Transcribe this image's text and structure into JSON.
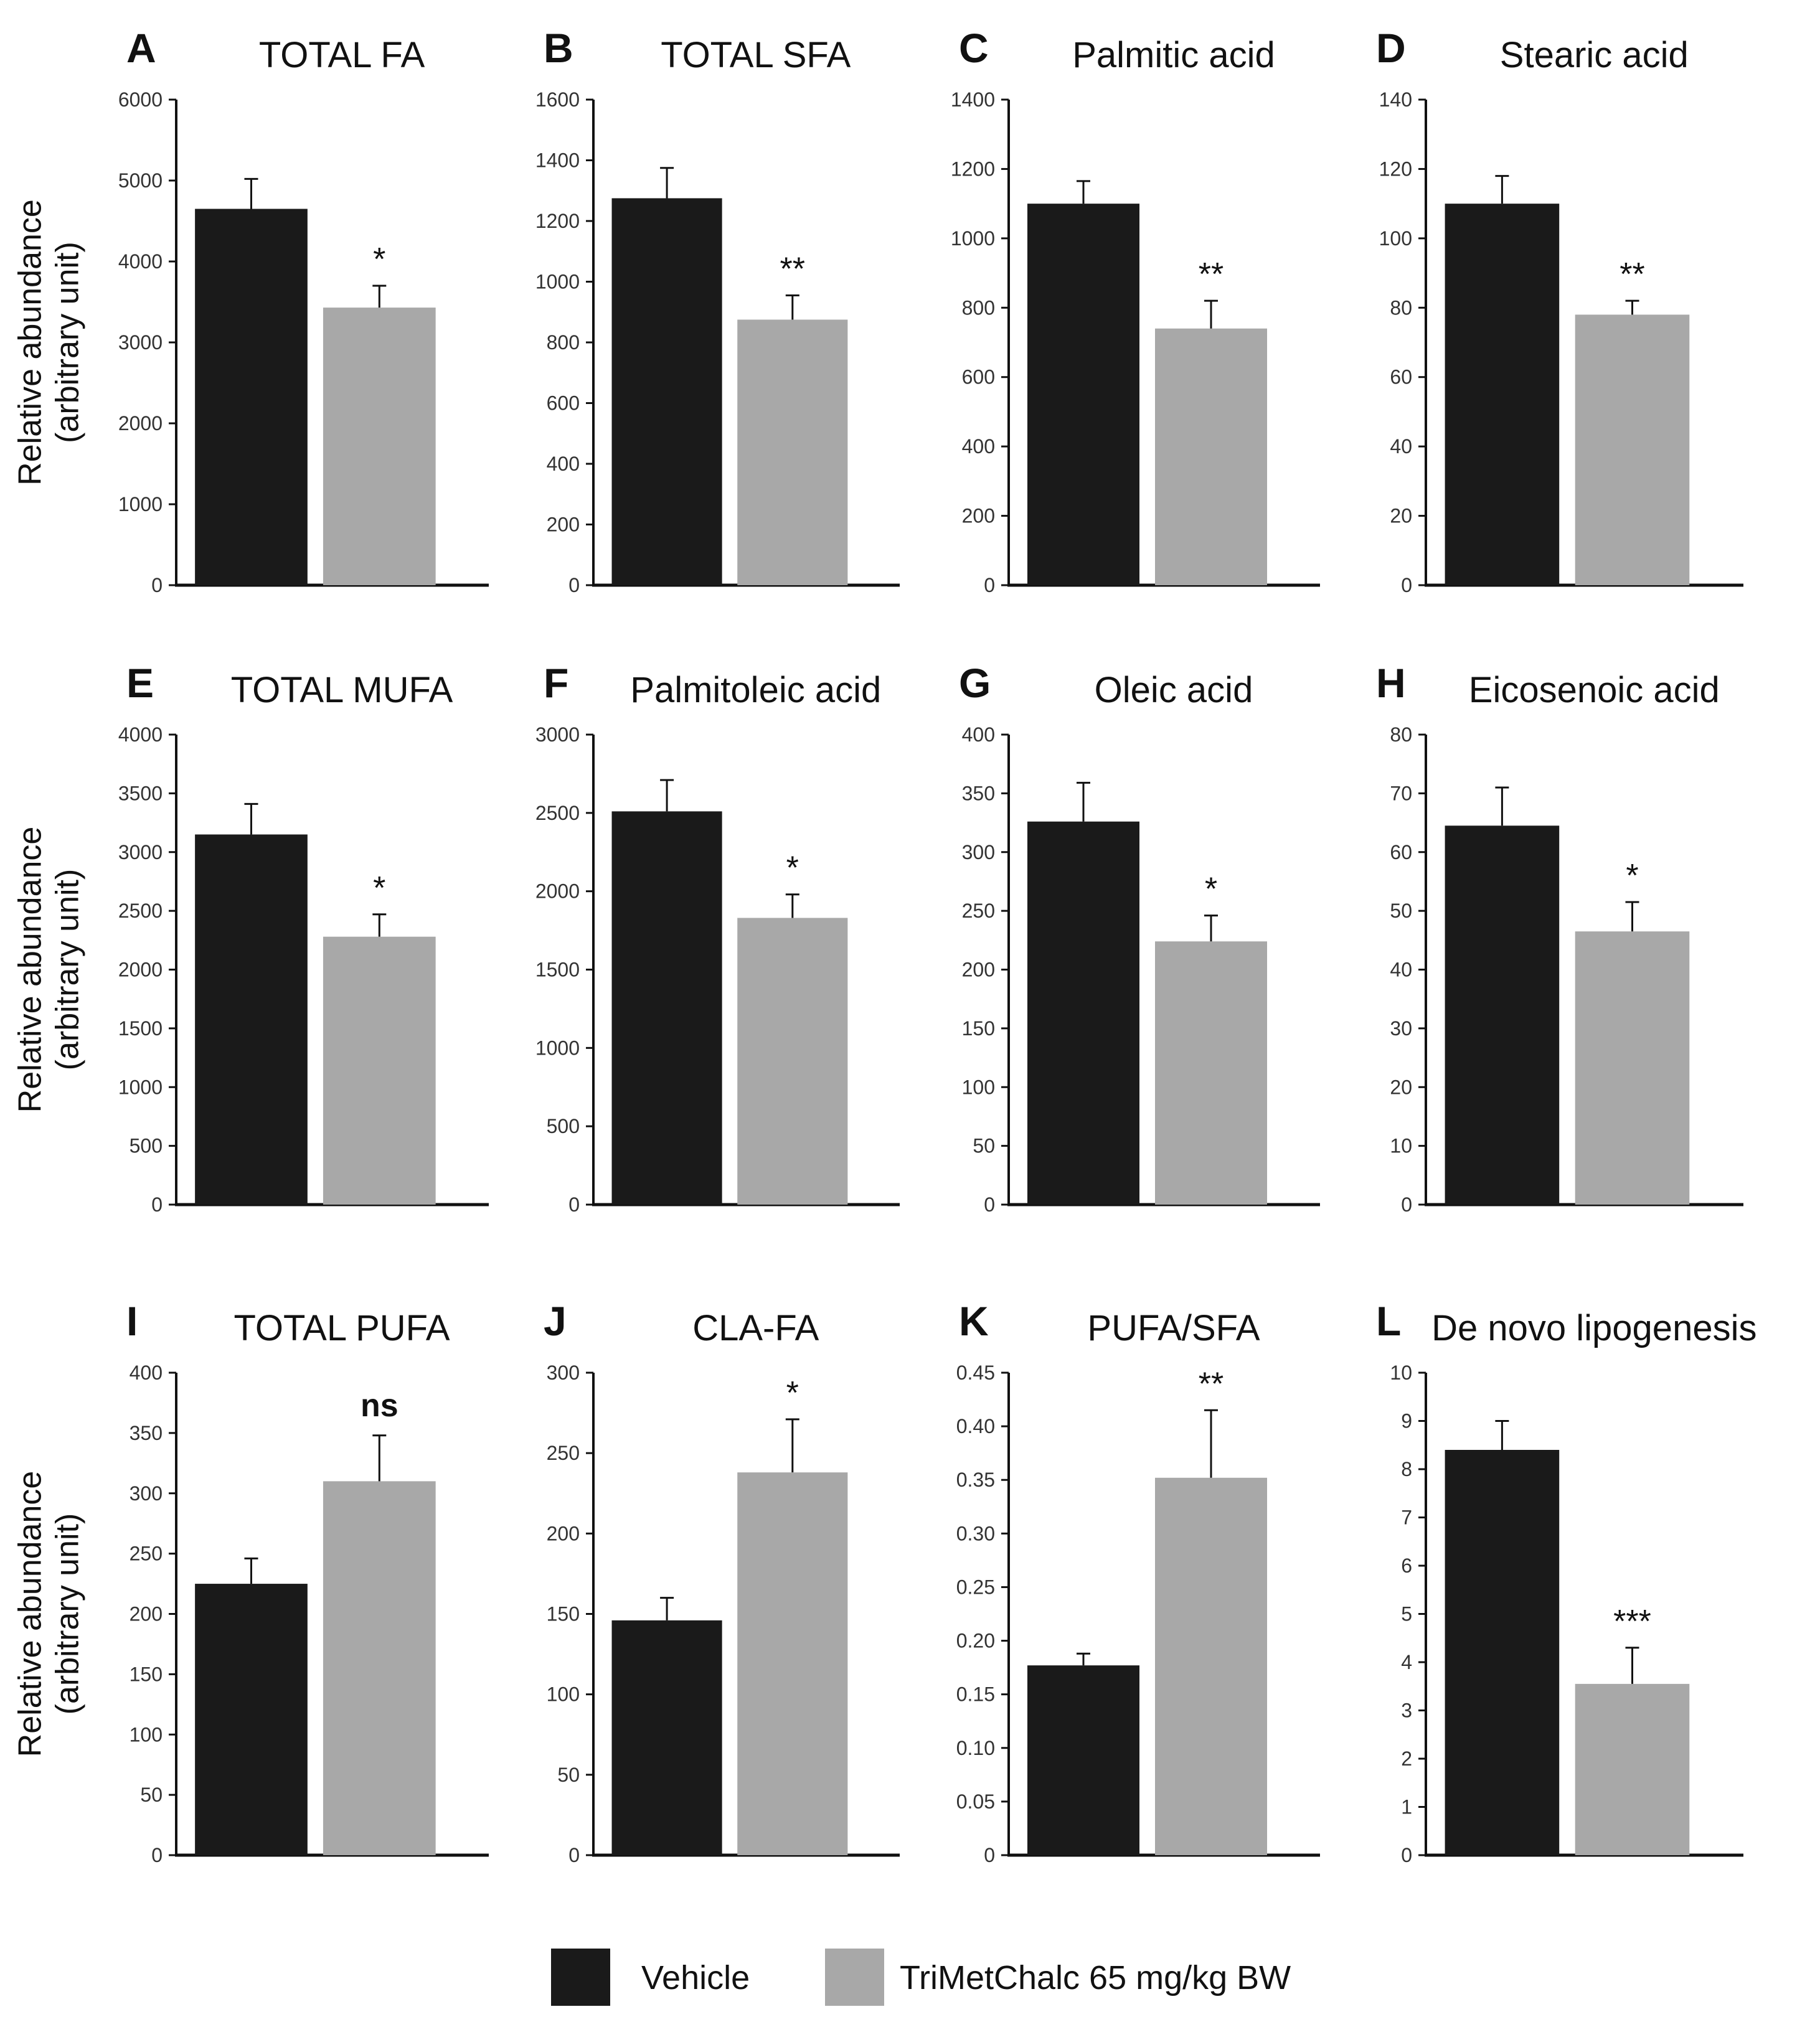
{
  "colors": {
    "vehicle": "#1a1a1a",
    "treated": "#a8a8a8",
    "axis": "#111111"
  },
  "ylabel": [
    "Relative abundance",
    "(arbitrary unit)"
  ],
  "legend": [
    {
      "key": "vehicle",
      "label": "Vehicle"
    },
    {
      "key": "treated",
      "label": "TriMetChalc 65 mg/kg BW"
    }
  ],
  "chart_data": [
    {
      "letter": "A",
      "type": "bar",
      "title": "TOTAL FA",
      "ylim": [
        0,
        6000
      ],
      "ticks": [
        "0",
        "1000",
        "2000",
        "3000",
        "4000",
        "5000",
        "6000"
      ],
      "categories": [
        "Vehicle",
        "TriMetChalc 65 mg/kg BW"
      ],
      "values": [
        4650,
        3430
      ],
      "errors": [
        370,
        270
      ],
      "significance": "*"
    },
    {
      "letter": "B",
      "type": "bar",
      "title": "TOTAL SFA",
      "ylim": [
        0,
        1600
      ],
      "ticks": [
        "0",
        "200",
        "400",
        "600",
        "800",
        "1000",
        "1200",
        "1400",
        "1600"
      ],
      "categories": [
        "Vehicle",
        "TriMetChalc 65 mg/kg BW"
      ],
      "values": [
        1275,
        875
      ],
      "errors": [
        100,
        80
      ],
      "significance": "**"
    },
    {
      "letter": "C",
      "type": "bar",
      "title": "Palmitic acid",
      "ylim": [
        0,
        1400
      ],
      "ticks": [
        "0",
        "200",
        "400",
        "600",
        "800",
        "1000",
        "1200",
        "1400"
      ],
      "categories": [
        "Vehicle",
        "TriMetChalc 65 mg/kg BW"
      ],
      "values": [
        1100,
        740
      ],
      "errors": [
        65,
        80
      ],
      "significance": "**"
    },
    {
      "letter": "D",
      "type": "bar",
      "title": "Stearic acid",
      "ylim": [
        0,
        140
      ],
      "ticks": [
        "0",
        "20",
        "40",
        "60",
        "80",
        "100",
        "120",
        "140"
      ],
      "categories": [
        "Vehicle",
        "TriMetChalc 65 mg/kg BW"
      ],
      "values": [
        110,
        78
      ],
      "errors": [
        8,
        4
      ],
      "significance": "**"
    },
    {
      "letter": "E",
      "type": "bar",
      "title": "TOTAL MUFA",
      "ylim": [
        0,
        4000
      ],
      "ticks": [
        "0",
        "500",
        "1000",
        "1500",
        "2000",
        "2500",
        "3000",
        "3500",
        "4000"
      ],
      "categories": [
        "Vehicle",
        "TriMetChalc 65 mg/kg BW"
      ],
      "values": [
        3150,
        2280
      ],
      "errors": [
        260,
        190
      ],
      "significance": "*"
    },
    {
      "letter": "F",
      "type": "bar",
      "title": "Palmitoleic acid",
      "ylim": [
        0,
        3000
      ],
      "ticks": [
        "0",
        "500",
        "1000",
        "1500",
        "2000",
        "2500",
        "3000"
      ],
      "categories": [
        "Vehicle",
        "TriMetChalc 65 mg/kg BW"
      ],
      "values": [
        2510,
        1830
      ],
      "errors": [
        200,
        150
      ],
      "significance": "*"
    },
    {
      "letter": "G",
      "type": "bar",
      "title": "Oleic acid",
      "ylim": [
        0,
        400
      ],
      "ticks": [
        "0",
        "50",
        "100",
        "150",
        "200",
        "250",
        "300",
        "350",
        "400"
      ],
      "categories": [
        "Vehicle",
        "TriMetChalc 65 mg/kg BW"
      ],
      "values": [
        326,
        224
      ],
      "errors": [
        33,
        22
      ],
      "significance": "*"
    },
    {
      "letter": "H",
      "type": "bar",
      "title": "Eicosenoic acid",
      "ylim": [
        0,
        80
      ],
      "ticks": [
        "0",
        "10",
        "20",
        "30",
        "40",
        "50",
        "60",
        "70",
        "80"
      ],
      "categories": [
        "Vehicle",
        "TriMetChalc 65 mg/kg BW"
      ],
      "values": [
        64.5,
        46.5
      ],
      "errors": [
        6.5,
        5
      ],
      "significance": "*"
    },
    {
      "letter": "I",
      "type": "bar",
      "title": "TOTAL PUFA",
      "ylim": [
        0,
        400
      ],
      "ticks": [
        "0",
        "50",
        "100",
        "150",
        "200",
        "250",
        "300",
        "350",
        "400"
      ],
      "categories": [
        "Vehicle",
        "TriMetChalc 65 mg/kg BW"
      ],
      "values": [
        225,
        310
      ],
      "errors": [
        21,
        38
      ],
      "significance": "ns"
    },
    {
      "letter": "J",
      "type": "bar",
      "title": "CLA-FA",
      "ylim": [
        0,
        300
      ],
      "ticks": [
        "0",
        "50",
        "100",
        "150",
        "200",
        "250",
        "300"
      ],
      "categories": [
        "Vehicle",
        "TriMetChalc 65 mg/kg BW"
      ],
      "values": [
        146,
        238
      ],
      "errors": [
        14,
        33
      ],
      "significance": "*"
    },
    {
      "letter": "K",
      "type": "bar",
      "title": "PUFA/SFA",
      "ylim": [
        0,
        0.45
      ],
      "ticks": [
        "0",
        "0.05",
        "0.10",
        "0.15",
        "0.20",
        "0.25",
        "0.30",
        "0.35",
        "0.40",
        "0.45"
      ],
      "categories": [
        "Vehicle",
        "TriMetChalc 65 mg/kg BW"
      ],
      "values": [
        0.177,
        0.352
      ],
      "errors": [
        0.011,
        0.063
      ],
      "significance": "**"
    },
    {
      "letter": "L",
      "type": "bar",
      "title": "De novo lipogenesis",
      "ylim": [
        0,
        10
      ],
      "ticks": [
        "0",
        "1",
        "2",
        "3",
        "4",
        "5",
        "6",
        "7",
        "8",
        "9",
        "10"
      ],
      "categories": [
        "Vehicle",
        "TriMetChalc 65 mg/kg BW"
      ],
      "values": [
        8.4,
        3.55
      ],
      "errors": [
        0.6,
        0.75
      ],
      "significance": "***"
    }
  ]
}
